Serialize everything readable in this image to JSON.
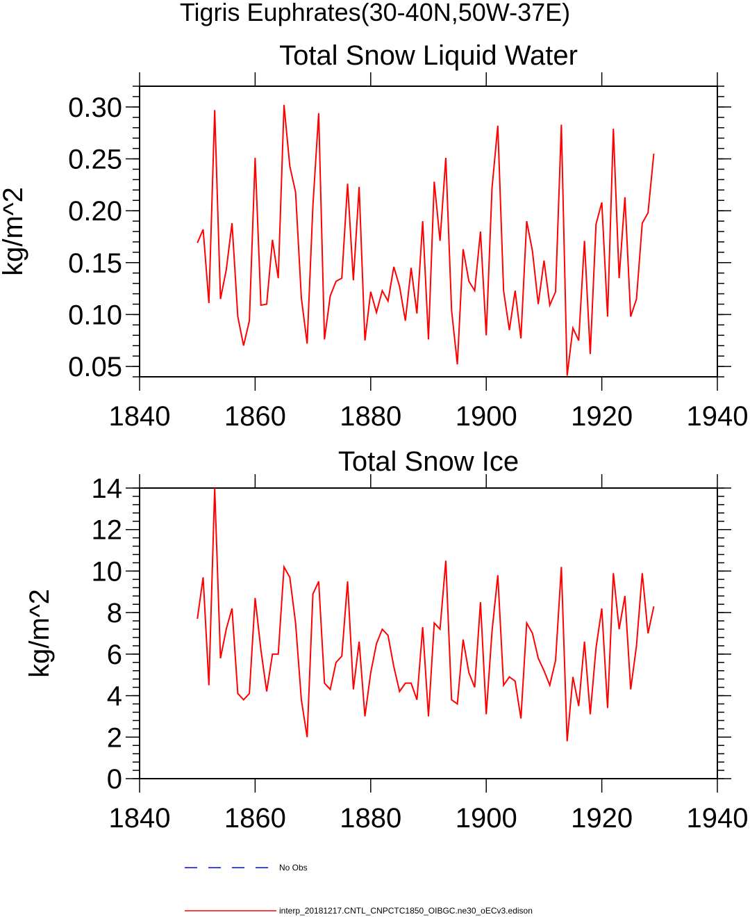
{
  "page_title": "Tigris Euphrates(30-40N,50W-37E)",
  "chart_data": [
    {
      "type": "line",
      "title": "Total Snow Liquid Water",
      "xlabel": "",
      "ylabel": "kg/m^2",
      "xlim": [
        1840,
        1940
      ],
      "ylim": [
        0.04,
        0.32
      ],
      "x_ticks": [
        "1840",
        "1860",
        "1880",
        "1900",
        "1920",
        "1940"
      ],
      "y_ticks": [
        "0.05",
        "0.10",
        "0.15",
        "0.20",
        "0.25",
        "0.30"
      ],
      "series": [
        {
          "name": "interp_20181217.CNTL_CNPCTC1850_OIBGC.ne30_oECv3.edison",
          "color": "#ff0000",
          "x_start": 1850,
          "x_step": 1,
          "values": [
            0.169,
            0.182,
            0.111,
            0.297,
            0.115,
            0.143,
            0.188,
            0.098,
            0.07,
            0.094,
            0.251,
            0.109,
            0.11,
            0.172,
            0.135,
            0.302,
            0.243,
            0.218,
            0.116,
            0.072,
            0.205,
            0.294,
            0.076,
            0.118,
            0.132,
            0.135,
            0.226,
            0.133,
            0.223,
            0.075,
            0.122,
            0.102,
            0.123,
            0.113,
            0.146,
            0.127,
            0.094,
            0.145,
            0.101,
            0.19,
            0.076,
            0.228,
            0.171,
            0.251,
            0.104,
            0.052,
            0.163,
            0.132,
            0.123,
            0.18,
            0.08,
            0.222,
            0.282,
            0.123,
            0.085,
            0.123,
            0.077,
            0.19,
            0.161,
            0.11,
            0.152,
            0.109,
            0.122,
            0.283,
            0.041,
            0.087,
            0.075,
            0.171,
            0.062,
            0.187,
            0.208,
            0.098,
            0.279,
            0.135,
            0.213,
            0.098,
            0.115,
            0.188,
            0.198,
            0.255
          ]
        }
      ]
    },
    {
      "type": "line",
      "title": "Total Snow Ice",
      "xlabel": "",
      "ylabel": "kg/m^2",
      "xlim": [
        1840,
        1940
      ],
      "ylim": [
        0,
        14
      ],
      "x_ticks": [
        "1840",
        "1860",
        "1880",
        "1900",
        "1920",
        "1940"
      ],
      "y_ticks": [
        "0",
        "2",
        "4",
        "6",
        "8",
        "10",
        "12",
        "14"
      ],
      "series": [
        {
          "name": "interp_20181217.CNTL_CNPCTC1850_OIBGC.ne30_oECv3.edison",
          "color": "#ff0000",
          "x_start": 1850,
          "x_step": 1,
          "values": [
            7.7,
            9.7,
            4.5,
            14.0,
            5.8,
            7.2,
            8.2,
            4.1,
            3.8,
            4.1,
            8.7,
            6.2,
            4.2,
            6.0,
            6.0,
            10.2,
            9.7,
            7.5,
            3.8,
            2.0,
            8.9,
            9.5,
            4.6,
            4.3,
            5.6,
            5.9,
            9.5,
            4.3,
            6.6,
            3.0,
            5.1,
            6.5,
            7.2,
            6.9,
            5.4,
            4.2,
            4.6,
            4.6,
            3.8,
            7.3,
            3.0,
            7.5,
            7.2,
            10.5,
            3.8,
            3.6,
            6.7,
            5.1,
            4.4,
            8.5,
            3.1,
            7.1,
            9.8,
            4.5,
            4.9,
            4.7,
            2.9,
            7.5,
            7.0,
            5.8,
            5.2,
            4.5,
            5.7,
            10.2,
            1.8,
            4.9,
            3.5,
            6.6,
            3.1,
            6.3,
            8.2,
            3.4,
            9.9,
            7.2,
            8.8,
            4.3,
            6.4,
            9.9,
            7.0,
            8.3
          ]
        }
      ]
    }
  ],
  "legend": [
    {
      "label": "No Obs",
      "color": "#0000ff",
      "style": "dashed"
    },
    {
      "label": "interp_20181217.CNTL_CNPCTC1850_OIBGC.ne30_oECv3.edison",
      "color": "#ff0000",
      "style": "solid"
    }
  ]
}
